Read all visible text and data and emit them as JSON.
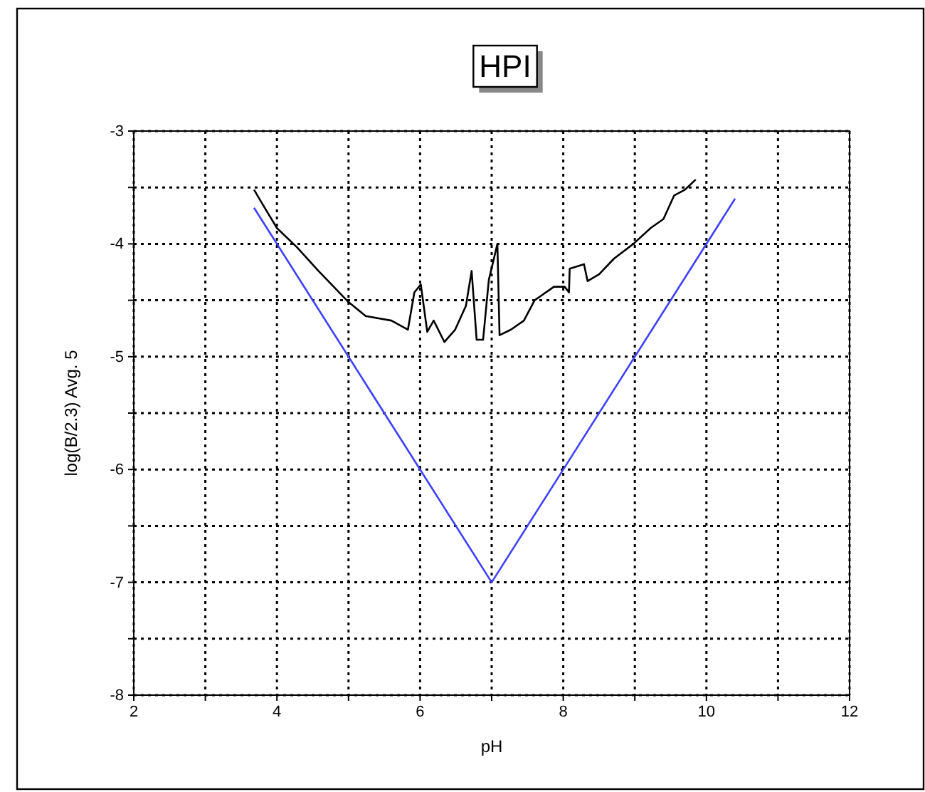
{
  "chart_data": {
    "type": "line",
    "title": "HPI",
    "xlabel": "pH",
    "ylabel": "log(B/2.3) Avg. 5",
    "xlim": [
      2,
      12
    ],
    "ylim": [
      -8,
      -3
    ],
    "xticks": [
      2,
      {
        "value": 3,
        "label": null
      },
      4,
      {
        "value": 5,
        "label": null
      },
      6,
      {
        "value": 7,
        "label": null
      },
      8,
      {
        "value": 9,
        "label": null
      },
      10,
      {
        "value": 11,
        "label": null
      },
      12
    ],
    "yticks": [
      -8,
      {
        "value": -7.5,
        "label": null
      },
      -7,
      {
        "value": -6.5,
        "label": null
      },
      -6,
      {
        "value": -5.5,
        "label": null
      },
      -5,
      {
        "value": -4.5,
        "label": null
      },
      -4,
      {
        "value": -3.5,
        "label": null
      },
      -3
    ],
    "grid": true,
    "marker": "none",
    "line_style": "solid",
    "series": [
      {
        "color": "#000000",
        "x": [
          3.68,
          3.8,
          4.0,
          4.28,
          4.58,
          4.99,
          5.24,
          5.6,
          5.83,
          5.92,
          6.01,
          6.1,
          6.19,
          6.34,
          6.49,
          6.64,
          6.72,
          6.79,
          6.88,
          6.96,
          7.08,
          7.11,
          7.27,
          7.45,
          7.6,
          7.87,
          8.02,
          8.08,
          8.09,
          8.29,
          8.34,
          8.5,
          8.71,
          8.98,
          9.22,
          9.4,
          9.55,
          9.7,
          9.85
        ],
        "values": [
          -3.52,
          -3.65,
          -3.86,
          -4.03,
          -4.24,
          -4.51,
          -4.64,
          -4.68,
          -4.76,
          -4.43,
          -4.36,
          -4.78,
          -4.68,
          -4.87,
          -4.76,
          -4.55,
          -4.24,
          -4.85,
          -4.85,
          -4.32,
          -4.0,
          -4.81,
          -4.76,
          -4.68,
          -4.5,
          -4.38,
          -4.38,
          -4.43,
          -4.22,
          -4.18,
          -4.33,
          -4.27,
          -4.13,
          -4.0,
          -3.86,
          -3.78,
          -3.57,
          -3.52,
          -3.43
        ]
      },
      {
        "color": "#4040ff",
        "x": [
          3.68,
          7.0,
          10.4
        ],
        "values": [
          -3.68,
          -7.0,
          -3.6
        ]
      }
    ]
  }
}
